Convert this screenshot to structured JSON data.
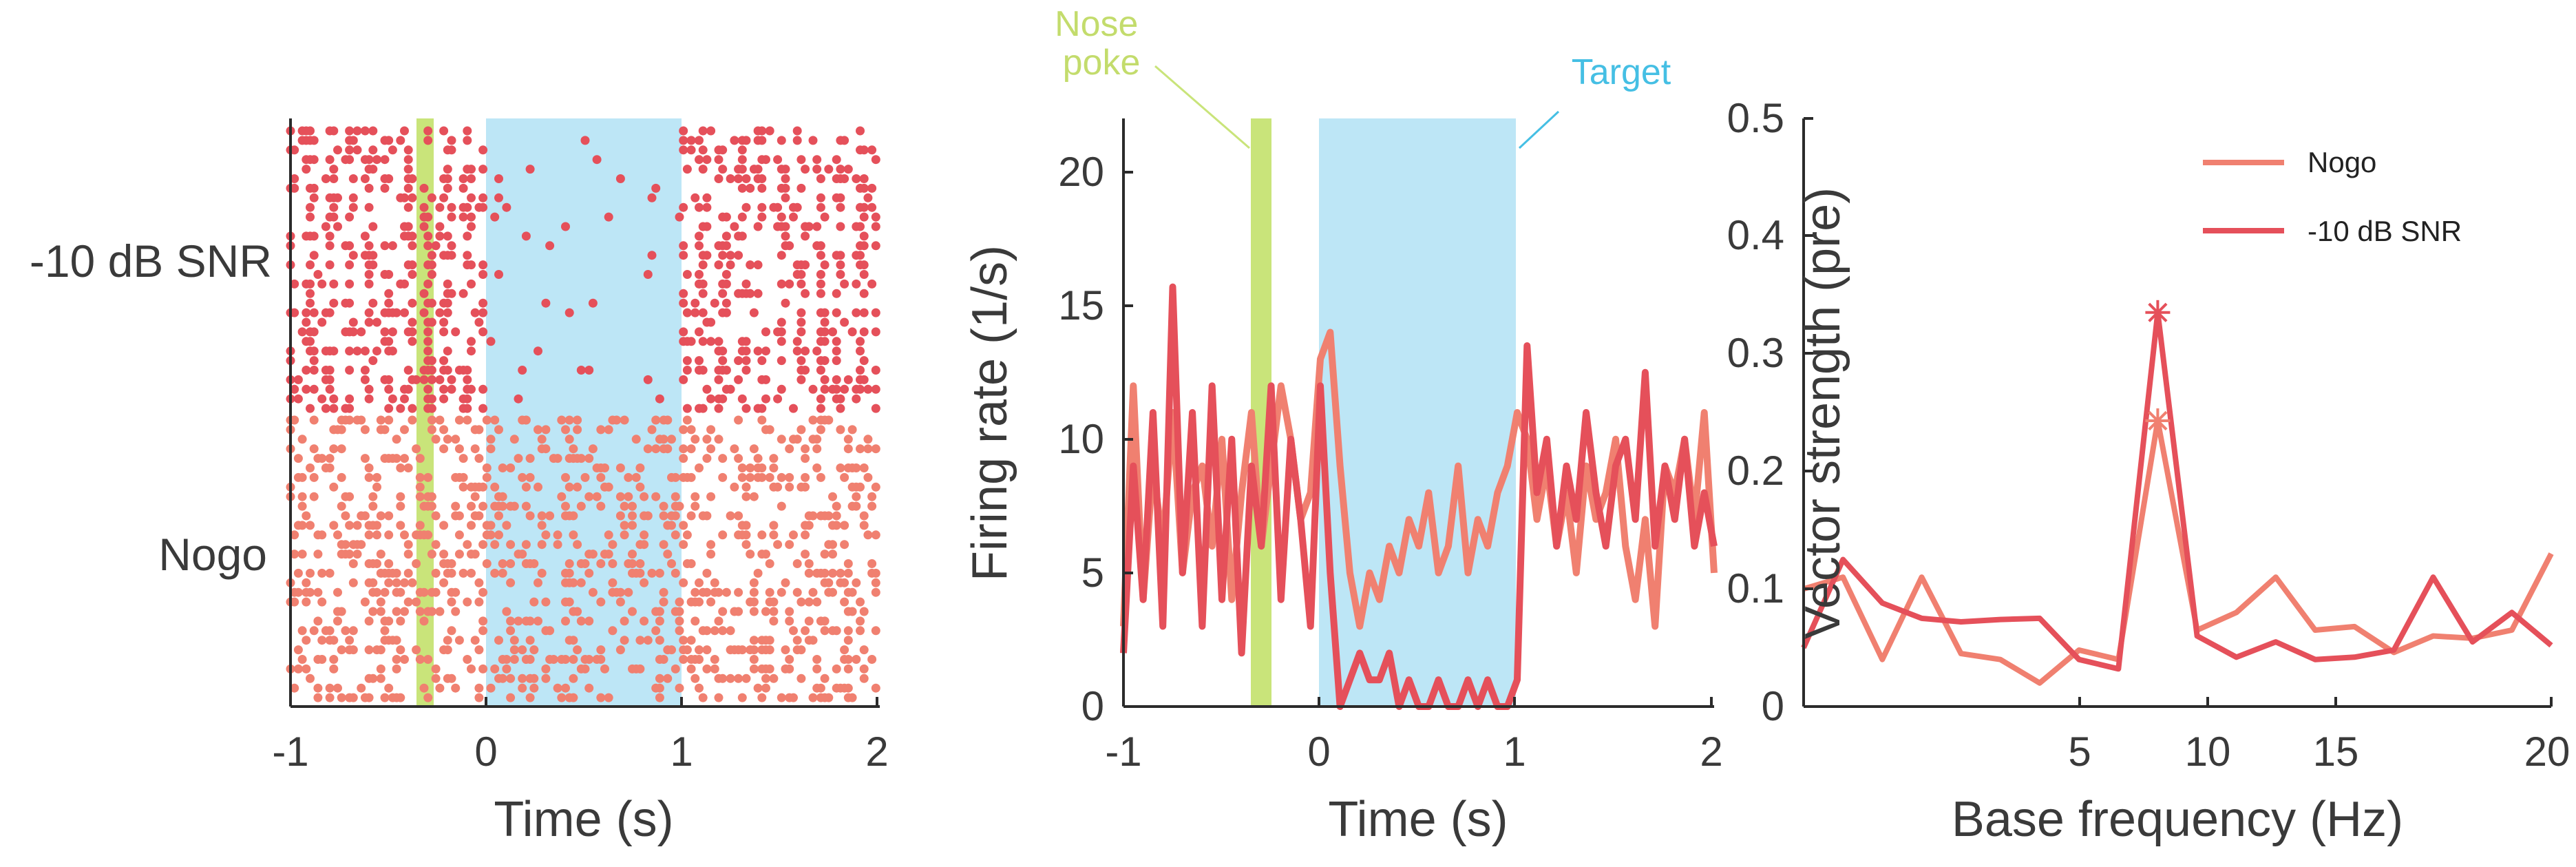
{
  "colors": {
    "nogo": "#f08070",
    "snr": "#e5505a",
    "nose_poke": "#c9e47a",
    "target": "#bde6f6",
    "nose_poke_text": "#c3dc6c",
    "target_text": "#45bfe4",
    "axis": "#2b2b2b"
  },
  "chart_data": [
    {
      "type": "scatter",
      "subtype": "raster",
      "title": "",
      "xlabel": "Time (s)",
      "ylabel": "",
      "xlim": [
        -1,
        2
      ],
      "xticks": [
        -1,
        0,
        1,
        2
      ],
      "xtick_labels": [
        "-1",
        "0",
        "1",
        "2"
      ],
      "row_labels": [
        "-10 dB SNR",
        "Nogo"
      ],
      "trials_per_condition": 30,
      "shaded_regions": [
        {
          "name": "Nose poke",
          "start": -0.35,
          "end": -0.27
        },
        {
          "name": "Target",
          "start": 0.0,
          "end": 1.0
        }
      ],
      "conditions": [
        {
          "name": "-10 dB SNR",
          "mean_rate_hz": {
            "pre": 7.0,
            "target": 0.6,
            "post": 7.0
          },
          "rhythm_hz": 10
        },
        {
          "name": "Nogo",
          "mean_rate_hz": {
            "pre": 6.5,
            "target": 6.0,
            "post": 6.5
          },
          "rhythm_hz": 0
        }
      ]
    },
    {
      "type": "line",
      "title": "",
      "xlabel": "Time (s)",
      "ylabel": "Firing rate (1/s)",
      "xlim": [
        -1,
        2
      ],
      "ylim": [
        0,
        22
      ],
      "xticks": [
        -1,
        0,
        1,
        2
      ],
      "xtick_labels": [
        "-1",
        "0",
        "1",
        "2"
      ],
      "yticks": [
        0,
        5,
        10,
        15,
        20
      ],
      "ytick_labels": [
        "0",
        "5",
        "10",
        "15",
        "20"
      ],
      "shaded_regions": [
        {
          "name": "Nose poke",
          "label": "Nose\npoke",
          "start": -0.35,
          "end": -0.27
        },
        {
          "name": "Target",
          "label": "Target",
          "start": 0.0,
          "end": 1.0
        }
      ],
      "series": [
        {
          "name": "Nogo",
          "x": [
            -1.0,
            -0.95,
            -0.9,
            -0.85,
            -0.8,
            -0.75,
            -0.7,
            -0.65,
            -0.6,
            -0.55,
            -0.5,
            -0.45,
            -0.4,
            -0.35,
            -0.3,
            -0.25,
            -0.2,
            -0.15,
            -0.1,
            -0.05,
            0.0,
            0.05,
            0.1,
            0.15,
            0.2,
            0.25,
            0.3,
            0.35,
            0.4,
            0.45,
            0.5,
            0.55,
            0.6,
            0.65,
            0.7,
            0.75,
            0.8,
            0.85,
            0.9,
            0.95,
            1.0,
            1.05,
            1.1,
            1.15,
            1.2,
            1.25,
            1.3,
            1.35,
            1.4,
            1.45,
            1.5,
            1.55,
            1.6,
            1.65,
            1.7,
            1.75,
            1.8,
            1.85,
            1.9,
            1.95,
            2.0
          ],
          "values": [
            3,
            12,
            4,
            9,
            6,
            11,
            5,
            8,
            9,
            6,
            10,
            4,
            8,
            11,
            6,
            9,
            12,
            10,
            7,
            8,
            13,
            14,
            9,
            5,
            3,
            5,
            4,
            6,
            5,
            7,
            6,
            8,
            5,
            6,
            9,
            5,
            7,
            6,
            8,
            9,
            11,
            10,
            7,
            9,
            6,
            8,
            5,
            9,
            7,
            8,
            10,
            6,
            4,
            7,
            3,
            9,
            8,
            10,
            7,
            11,
            5
          ]
        },
        {
          "name": "-10 dB SNR",
          "x": [
            -1.0,
            -0.95,
            -0.9,
            -0.85,
            -0.8,
            -0.75,
            -0.7,
            -0.65,
            -0.6,
            -0.55,
            -0.5,
            -0.45,
            -0.4,
            -0.35,
            -0.3,
            -0.25,
            -0.2,
            -0.15,
            -0.1,
            -0.05,
            0.0,
            0.05,
            0.1,
            0.15,
            0.2,
            0.25,
            0.3,
            0.35,
            0.4,
            0.45,
            0.5,
            0.55,
            0.6,
            0.65,
            0.7,
            0.75,
            0.8,
            0.85,
            0.9,
            0.95,
            1.0,
            1.05,
            1.1,
            1.15,
            1.2,
            1.25,
            1.3,
            1.35,
            1.4,
            1.45,
            1.5,
            1.55,
            1.6,
            1.65,
            1.7,
            1.75,
            1.8,
            1.85,
            1.9,
            1.95,
            2.0
          ],
          "values": [
            2,
            9,
            4,
            11,
            3,
            15.7,
            5,
            11,
            3,
            12,
            4,
            10,
            2,
            9,
            6,
            12,
            4,
            10,
            7,
            3,
            12,
            5,
            0,
            1,
            2,
            1,
            1,
            2,
            0,
            1,
            0,
            0,
            1,
            0,
            0,
            1,
            0,
            1,
            0,
            0,
            1,
            13.5,
            8,
            10,
            6,
            9,
            7,
            11,
            8,
            6,
            9,
            10,
            7,
            12.5,
            6,
            9,
            7,
            10,
            6,
            8,
            6
          ]
        }
      ]
    },
    {
      "type": "line",
      "title": "",
      "xlabel": "Base frequency (Hz)",
      "ylabel": "Vector strength (pre)",
      "xlim": [
        1,
        20
      ],
      "ylim": [
        0,
        0.5
      ],
      "xticks": [
        5,
        10,
        15,
        20
      ],
      "xtick_labels": [
        "5",
        "10",
        "15",
        "20"
      ],
      "yticks": [
        0,
        0.1,
        0.2,
        0.3,
        0.4,
        0.5
      ],
      "ytick_labels": [
        "0",
        "0.1",
        "0.2",
        "0.3",
        "0.4",
        "0.5"
      ],
      "legend": {
        "placement": "top-right",
        "entries": [
          "Nogo",
          "-10 dB SNR"
        ]
      },
      "significance_markers": [
        {
          "series": "Nogo",
          "x": 10,
          "y": 0.243
        },
        {
          "series": "-10 dB SNR",
          "x": 10,
          "y": 0.335
        }
      ],
      "series": [
        {
          "name": "Nogo",
          "x": [
            1,
            2,
            3,
            4,
            5,
            6,
            7,
            8,
            9,
            10,
            11,
            12,
            13,
            14,
            15,
            16,
            17,
            18,
            19,
            20
          ],
          "values": [
            0.1,
            0.11,
            0.04,
            0.11,
            0.045,
            0.04,
            0.02,
            0.048,
            0.04,
            0.243,
            0.065,
            0.08,
            0.11,
            0.065,
            0.068,
            0.046,
            0.06,
            0.058,
            0.065,
            0.13
          ]
        },
        {
          "name": "-10 dB SNR",
          "x": [
            1,
            2,
            3,
            4,
            5,
            6,
            7,
            8,
            9,
            10,
            11,
            12,
            13,
            14,
            15,
            16,
            17,
            18,
            19,
            20
          ],
          "values": [
            0.05,
            0.125,
            0.088,
            0.075,
            0.072,
            0.074,
            0.075,
            0.04,
            0.032,
            0.335,
            0.06,
            0.042,
            0.055,
            0.04,
            0.042,
            0.048,
            0.11,
            0.055,
            0.08,
            0.052
          ]
        }
      ]
    }
  ]
}
